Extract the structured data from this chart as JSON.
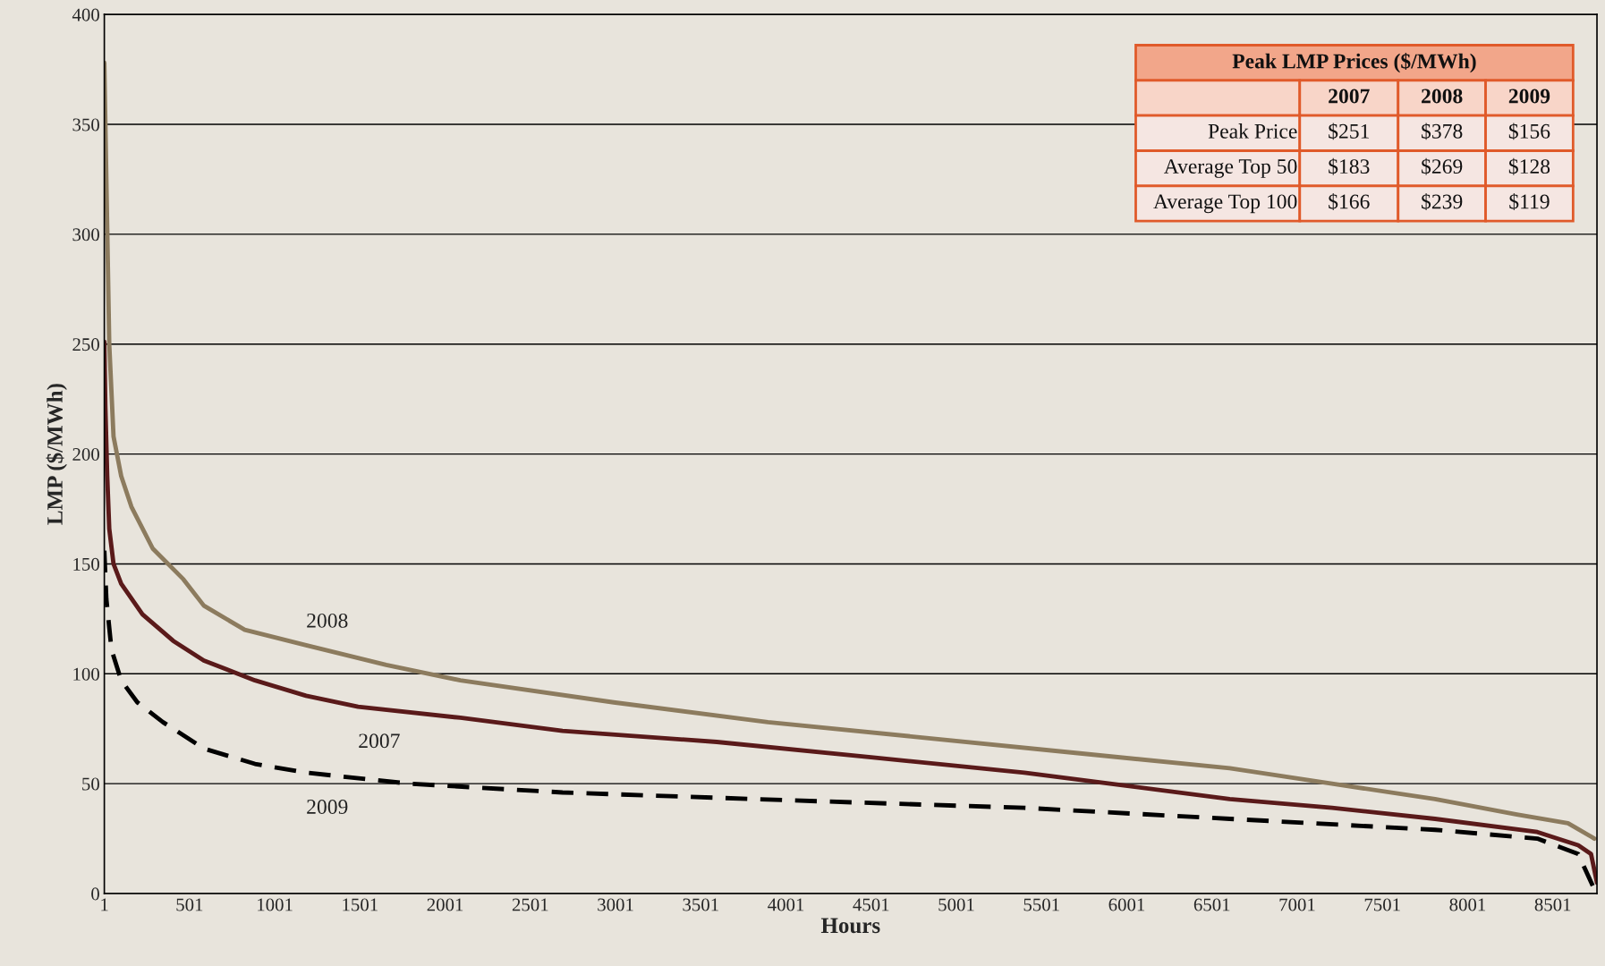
{
  "chart_data": {
    "type": "line",
    "xlabel": "Hours",
    "ylabel": "LMP ($/MWh)",
    "xlim": [
      1,
      8760
    ],
    "xticks": [
      1,
      501,
      1001,
      1501,
      2001,
      2501,
      3001,
      3501,
      4001,
      4501,
      5001,
      5501,
      6001,
      6501,
      7001,
      7501,
      8001,
      8501
    ],
    "ylim": [
      0,
      400
    ],
    "yticks": [
      0,
      50,
      100,
      150,
      200,
      250,
      300,
      350,
      400
    ],
    "grid": "y",
    "legend": false,
    "series": [
      {
        "name": "2008",
        "color": "#8c7b5e",
        "line_style": "solid",
        "x": [
          1,
          30,
          55,
          100,
          160,
          285,
          465,
          585,
          825,
          1185,
          1655,
          2090,
          2990,
          3895,
          4800,
          5700,
          6605,
          7205,
          7810,
          8290,
          8590,
          8745
        ],
        "values": [
          378,
          250,
          208,
          190,
          176,
          157,
          143,
          131,
          120,
          113,
          104,
          97,
          87,
          78,
          71,
          64,
          57,
          50,
          43,
          36,
          32,
          25
        ]
      },
      {
        "name": "2007",
        "color": "#5a1a1a",
        "line_style": "solid",
        "x": [
          1,
          7,
          18,
          30,
          55,
          100,
          225,
          405,
          585,
          885,
          1185,
          1490,
          2090,
          2690,
          3595,
          4500,
          5400,
          6005,
          6605,
          7205,
          7810,
          8410,
          8650,
          8725,
          8760
        ],
        "values": [
          251,
          222,
          190,
          166,
          150,
          141,
          127,
          115,
          106,
          97,
          90,
          85,
          80,
          74,
          69,
          62,
          55,
          49,
          43,
          39,
          34,
          28,
          22,
          18,
          5
        ]
      },
      {
        "name": "2009",
        "color": "#000000",
        "line_style": "dashed",
        "x": [
          1,
          13,
          43,
          100,
          195,
          345,
          585,
          885,
          1185,
          1790,
          2690,
          4195,
          5400,
          6605,
          7810,
          8410,
          8650,
          8750
        ],
        "values": [
          156,
          134,
          111,
          97,
          87,
          78,
          66,
          59,
          55,
          50,
          46,
          42,
          39,
          34,
          29,
          25,
          18,
          1
        ]
      }
    ],
    "annotations": [
      "Peak LMP Prices ($/MWh)",
      "2007",
      "2008",
      "2009",
      "Peak Price",
      "$251",
      "$378",
      "$156",
      "Average Top 50",
      "$183",
      "$269",
      "$128",
      "Average Top 100",
      "$166",
      "$239",
      "$119"
    ]
  }
}
